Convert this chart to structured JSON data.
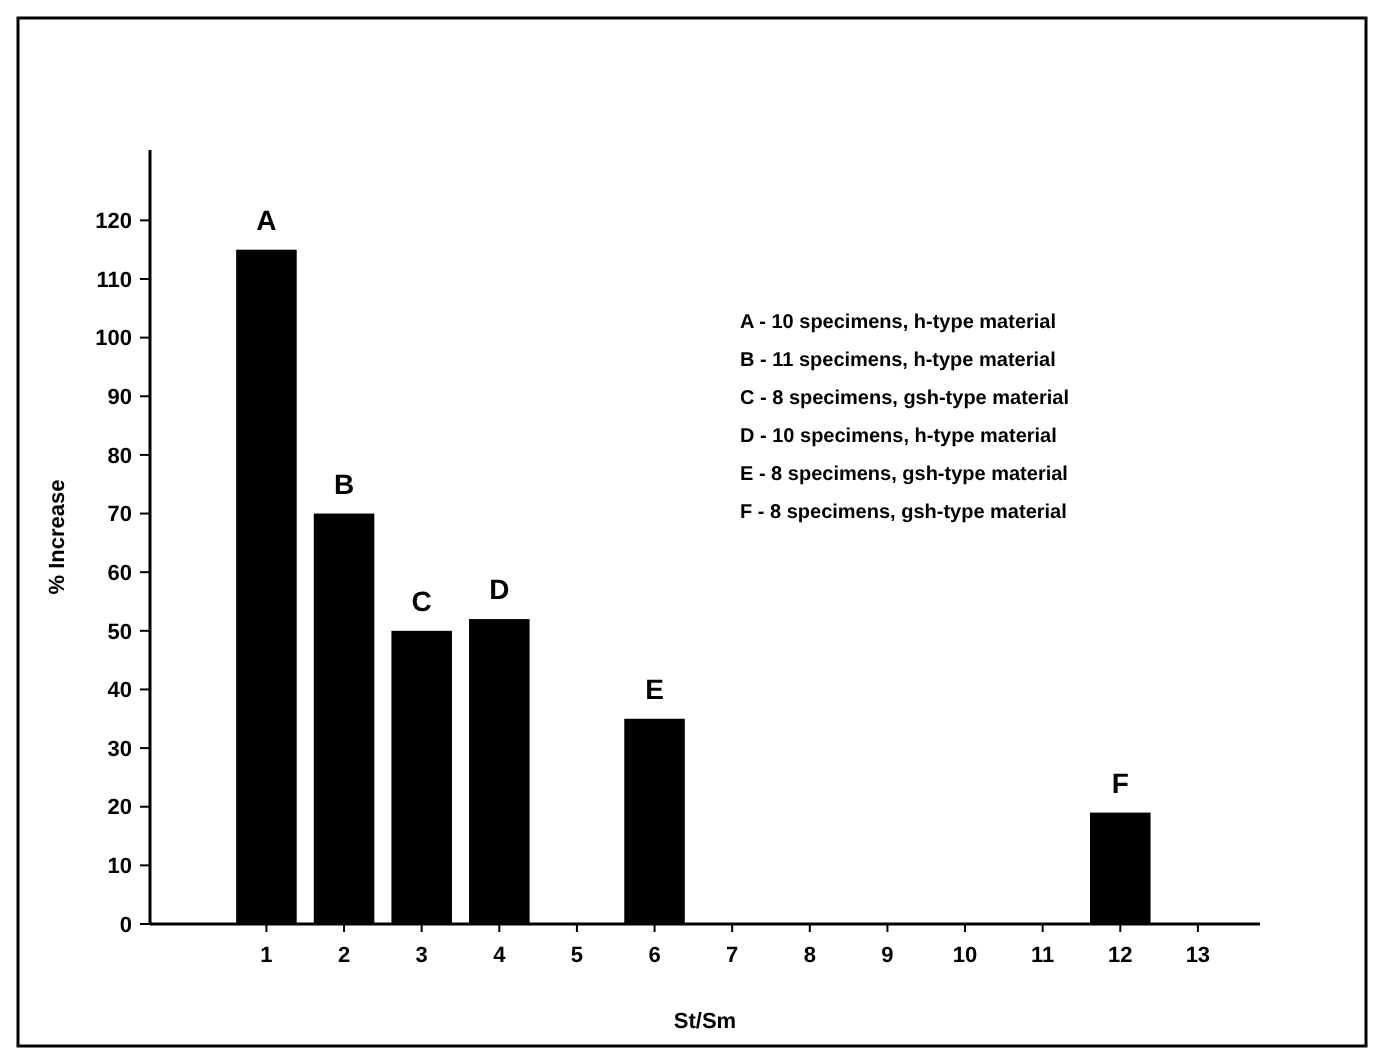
{
  "chart_data": {
    "type": "bar",
    "xlabel": "St/Sm",
    "ylabel": "% Increase",
    "x": [
      1,
      2,
      3,
      4,
      6,
      12
    ],
    "values": [
      115,
      70,
      50,
      52,
      35,
      19
    ],
    "color": "#000000",
    "xlim": [
      -0.5,
      13.8
    ],
    "xticks": [
      1,
      2,
      3,
      4,
      5,
      6,
      7,
      8,
      9,
      10,
      11,
      12,
      13
    ],
    "ylim": [
      0,
      132
    ],
    "yticks": [
      0,
      10,
      20,
      30,
      40,
      50,
      60,
      70,
      80,
      90,
      100,
      110,
      120
    ],
    "grid": false,
    "annotations": [
      {
        "text": "A",
        "x": 1,
        "y": 115
      },
      {
        "text": "B",
        "x": 2,
        "y": 70
      },
      {
        "text": "C",
        "x": 3,
        "y": 50
      },
      {
        "text": "D",
        "x": 4,
        "y": 52
      },
      {
        "text": "E",
        "x": 6,
        "y": 35
      },
      {
        "text": "F",
        "x": 12,
        "y": 19
      },
      "A - 10 specimens, h-type material",
      "B - 11 specimens, h-type material",
      "C - 8 specimens, gsh-type material",
      "D - 10 specimens, h-type material",
      "E - 8 specimens, gsh-type material",
      "F - 8 specimens, gsh-type material"
    ]
  }
}
